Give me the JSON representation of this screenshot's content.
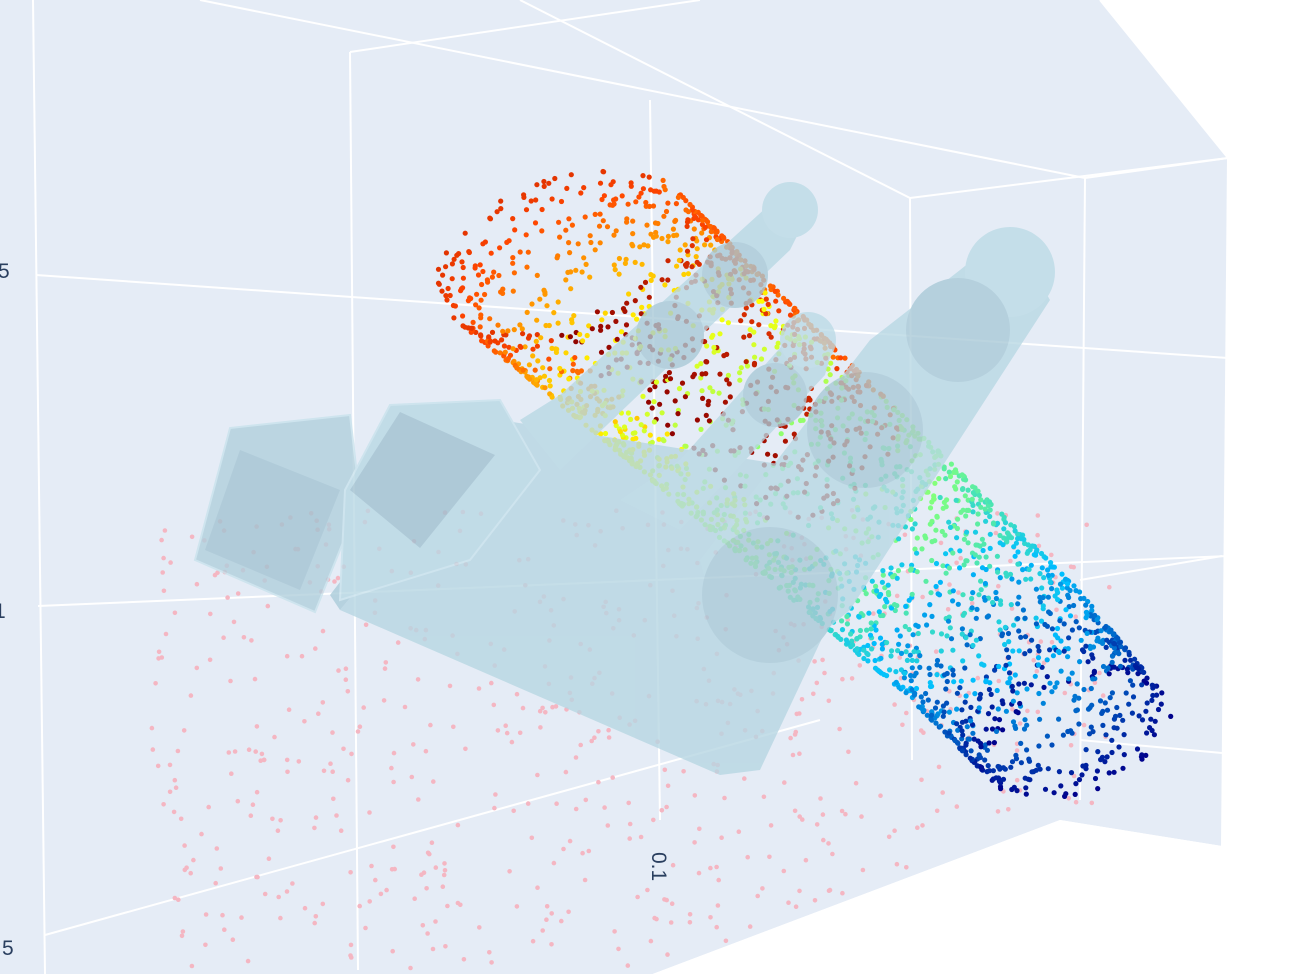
{
  "chart_data": {
    "type": "scatter3d",
    "title": "",
    "axes": {
      "visible_tick_labels": {
        "z_upper": "5",
        "z_middle": "1",
        "z_lower": "5",
        "x_floor": "0.1"
      }
    },
    "background_color": "#e5ecf6",
    "grid_color": "#ffffff",
    "series": [
      {
        "kind": "points",
        "description_source": "visible",
        "colorscale": "jet",
        "color_range": [
          "#00008b",
          "#00bfff",
          "#7fff7f",
          "#ffff00",
          "#ff4500",
          "#8b0000"
        ],
        "shape": "curved-cylinder-shell"
      },
      {
        "kind": "points",
        "color": "#f4b6c2",
        "shape": "scattered-floor-cloud"
      },
      {
        "kind": "mesh",
        "color": "#add8e6",
        "opacity": 0.75,
        "shape": "gripper-hand-meshes"
      }
    ]
  }
}
